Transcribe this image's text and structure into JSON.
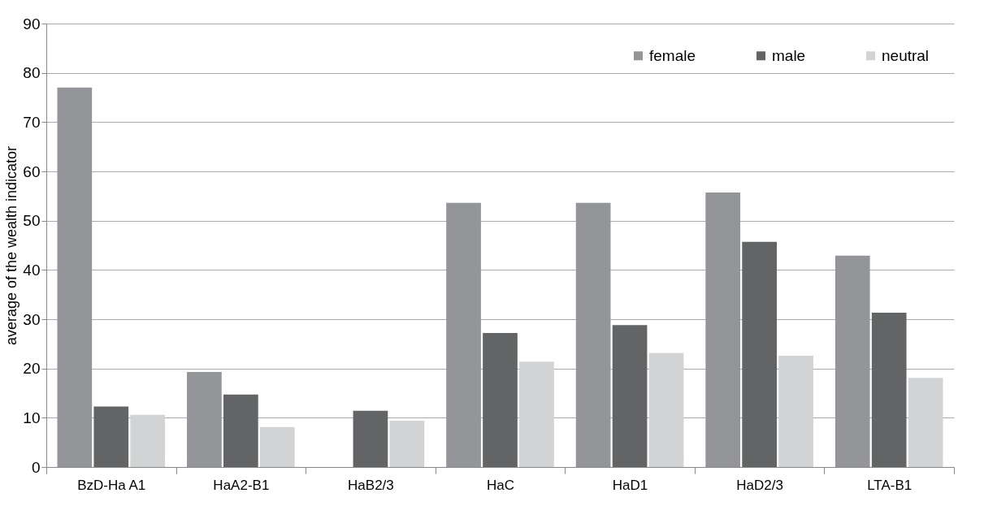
{
  "chart_data": {
    "type": "bar",
    "ylabel": "average of the wealth indicator",
    "categories": [
      "BzD-Ha A1",
      "HaA2-B1",
      "HaB2/3",
      "HaC",
      "HaD1",
      "HaD2/3",
      "LTA-B1"
    ],
    "series": [
      {
        "name": "female",
        "color": "#939598",
        "values": [
          77.0,
          19.3,
          null,
          53.6,
          53.6,
          55.7,
          42.9
        ]
      },
      {
        "name": "male",
        "color": "#636466",
        "values": [
          12.3,
          14.7,
          11.4,
          27.2,
          28.8,
          45.7,
          31.3
        ]
      },
      {
        "name": "neutral",
        "color": "#d1d3d4",
        "values": [
          10.6,
          8.1,
          9.4,
          21.4,
          23.1,
          22.6,
          18.1
        ]
      }
    ],
    "ylim": [
      0,
      90
    ],
    "yticks": [
      0,
      10,
      20,
      30,
      40,
      50,
      60,
      70,
      80,
      90
    ],
    "grid": "y",
    "legend": "top right"
  }
}
